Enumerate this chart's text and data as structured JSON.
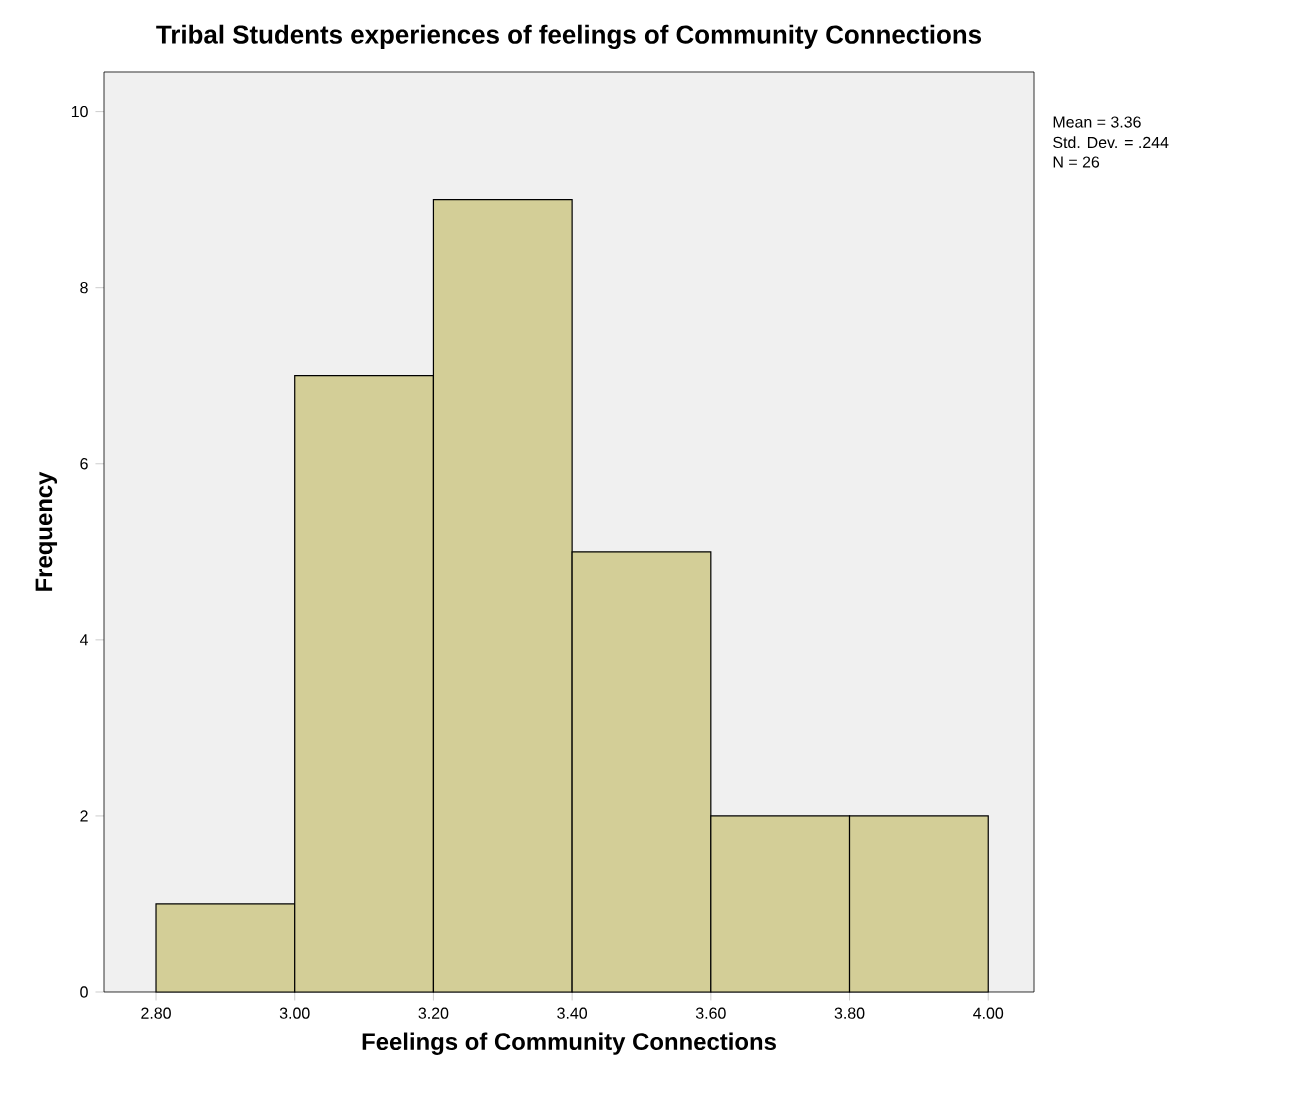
{
  "chart_data": {
    "type": "histogram",
    "title": "Tribal Students experiences of feelings of Community Connections",
    "xlabel": "Feelings of Community Connections",
    "ylabel": "Frequency",
    "bins": [
      2.8,
      3.0,
      3.2,
      3.4,
      3.6,
      3.8,
      4.0
    ],
    "values": [
      1,
      7,
      9,
      5,
      2,
      2
    ],
    "color": "#d3ce97",
    "xlim": [
      2.725,
      4.066
    ],
    "ylim": [
      0,
      10.45
    ],
    "xticks": [
      {
        "value": 2.8,
        "label": "2.80"
      },
      {
        "value": 3.0,
        "label": "3.00"
      },
      {
        "value": 3.2,
        "label": "3.20"
      },
      {
        "value": 3.4,
        "label": "3.40"
      },
      {
        "value": 3.6,
        "label": "3.60"
      },
      {
        "value": 3.8,
        "label": "3.80"
      },
      {
        "value": 4.0,
        "label": "4.00"
      }
    ],
    "yticks": [
      0,
      2,
      4,
      6,
      8,
      10
    ],
    "annotations": [
      "Mean = 3.36",
      "Std. Dev. = .244",
      "N = 26"
    ]
  }
}
